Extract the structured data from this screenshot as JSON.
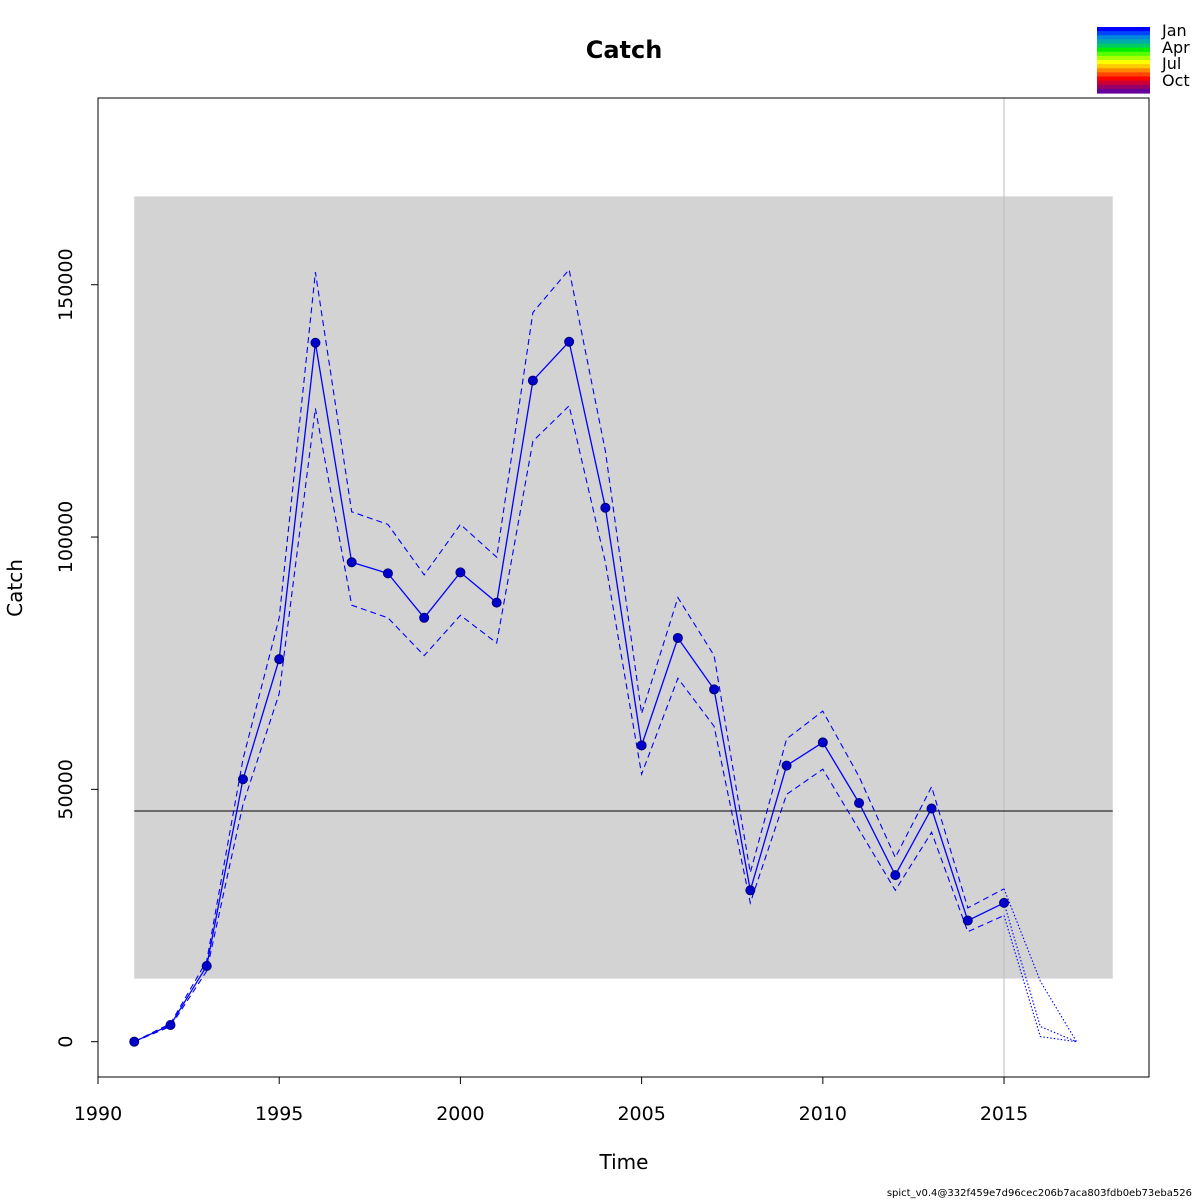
{
  "chart_data": {
    "type": "line",
    "title": "Catch",
    "xlabel": "Time",
    "ylabel": "Catch",
    "xlim": [
      1990,
      2019
    ],
    "ylim": [
      -7000,
      187000
    ],
    "xticks": [
      1990,
      1995,
      2000,
      2005,
      2010,
      2015
    ],
    "yticks": [
      0,
      50000,
      100000,
      150000
    ],
    "band": {
      "x": [
        1991,
        2018
      ],
      "y": [
        12500,
        167500
      ],
      "color": "#d3d3d3"
    },
    "reference_line": {
      "y": 45700,
      "x": [
        1991,
        2018
      ],
      "color": "#000000"
    },
    "vertical_line": {
      "x": 2015,
      "color": "#bebebe"
    },
    "series": [
      {
        "role": "estimate",
        "style": "solid",
        "color": "#0000ff",
        "x": [
          1991,
          1992,
          1993,
          1994,
          1995,
          1996,
          1997,
          1998,
          1999,
          2000,
          2001,
          2002,
          2003,
          2004,
          2005,
          2006,
          2007,
          2008,
          2009,
          2010,
          2011,
          2012,
          2013,
          2014,
          2015
        ],
        "y": [
          0,
          3300,
          15000,
          52000,
          75800,
          138500,
          95000,
          92800,
          84000,
          93000,
          87000,
          131000,
          138700,
          105800,
          58700,
          80000,
          69800,
          30000,
          54700,
          59300,
          47300,
          33000,
          46200,
          24000,
          27500
        ]
      },
      {
        "role": "upper",
        "style": "dashed",
        "color": "#0000ff",
        "x": [
          1991,
          1992,
          1993,
          1994,
          1995,
          1996,
          1997,
          1998,
          1999,
          2000,
          2001,
          2002,
          2003,
          2004,
          2005,
          2006,
          2007,
          2008,
          2009,
          2010,
          2011,
          2012,
          2013,
          2014,
          2015
        ],
        "y": [
          0,
          3600,
          16000,
          56000,
          84000,
          152500,
          105000,
          102500,
          92500,
          102500,
          96000,
          144500,
          153000,
          117000,
          65000,
          88000,
          76500,
          33500,
          60000,
          65500,
          52500,
          36500,
          50500,
          26500,
          30300
        ]
      },
      {
        "role": "lower",
        "style": "dashed",
        "color": "#0000ff",
        "x": [
          1991,
          1992,
          1993,
          1994,
          1995,
          1996,
          1997,
          1998,
          1999,
          2000,
          2001,
          2002,
          2003,
          2004,
          2005,
          2006,
          2007,
          2008,
          2009,
          2010,
          2011,
          2012,
          2013,
          2014,
          2015
        ],
        "y": [
          0,
          3000,
          14000,
          47000,
          69000,
          125500,
          86500,
          84000,
          76500,
          84500,
          79000,
          119000,
          126000,
          95000,
          53000,
          72000,
          62500,
          27500,
          49000,
          54000,
          42000,
          30000,
          41500,
          21800,
          25000
        ]
      },
      {
        "role": "prediction",
        "style": "dotted",
        "color": "#0000ff",
        "x": [
          2015,
          2016,
          2017
        ],
        "y": [
          27500,
          3000,
          0
        ]
      },
      {
        "role": "prediction-upper",
        "style": "dotted",
        "color": "#0000ff",
        "x": [
          2015,
          2016,
          2017
        ],
        "y": [
          30300,
          12000,
          0
        ]
      },
      {
        "role": "prediction-lower",
        "style": "dotted",
        "color": "#0000ff",
        "x": [
          2015,
          2016,
          2017
        ],
        "y": [
          25000,
          1000,
          0
        ]
      }
    ],
    "points": {
      "color": "#0000cd",
      "x": [
        1991,
        1992,
        1993,
        1994,
        1995,
        1996,
        1997,
        1998,
        1999,
        2000,
        2001,
        2002,
        2003,
        2004,
        2005,
        2006,
        2007,
        2008,
        2009,
        2010,
        2011,
        2012,
        2013,
        2014,
        2015
      ],
      "y": [
        0,
        3300,
        15000,
        52000,
        75800,
        138500,
        95000,
        92800,
        84000,
        93000,
        87000,
        131000,
        138700,
        105800,
        58700,
        80000,
        69800,
        30000,
        54700,
        59300,
        47300,
        33000,
        46200,
        24000,
        27500
      ]
    },
    "legend": {
      "placement": "top-right",
      "labels": [
        "Jan",
        "Apr",
        "Jul",
        "Oct"
      ],
      "colors": [
        "#0000ff",
        "#0044ff",
        "#0088dd",
        "#00aaaa",
        "#00cc66",
        "#00ee00",
        "#55ff00",
        "#aaff00",
        "#ffff00",
        "#ffcc00",
        "#ff8800",
        "#ff4400",
        "#ff0000",
        "#cc0033",
        "#990066",
        "#660099"
      ]
    },
    "footer": "spict_v0.4@332f459e7d96cec206b7aca803fdb0eb73eba526"
  }
}
